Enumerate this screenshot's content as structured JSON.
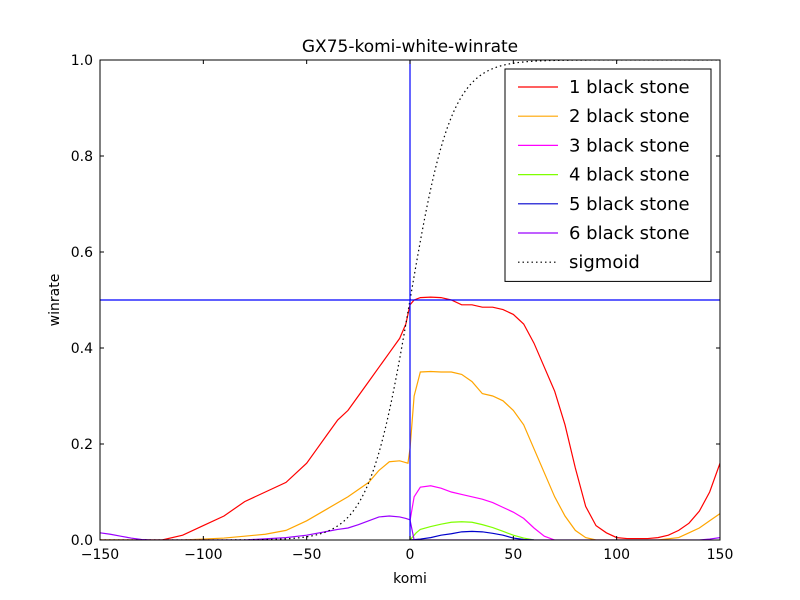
{
  "chart_data": {
    "type": "line",
    "title": "GX75-komi-white-winrate",
    "xlabel": "komi",
    "ylabel": "winrate",
    "xlim": [
      -150,
      150
    ],
    "ylim": [
      0.0,
      1.0
    ],
    "xticks": [
      -150,
      -100,
      -50,
      0,
      50,
      100,
      150
    ],
    "xtick_labels": [
      "−150",
      "−100",
      "−50",
      "0",
      "50",
      "100",
      "150"
    ],
    "yticks": [
      0.0,
      0.2,
      0.4,
      0.6,
      0.8,
      1.0
    ],
    "ytick_labels": [
      "0.0",
      "0.2",
      "0.4",
      "0.6",
      "0.8",
      "1.0"
    ],
    "legend_position": "top-right",
    "reference_lines": {
      "vertical_x": 0,
      "horizontal_y": 0.5,
      "color": "#0000ff"
    },
    "series": [
      {
        "name": "1 black stone",
        "color": "#ff0000",
        "style": "solid",
        "x": [
          -150,
          -140,
          -130,
          -120,
          -110,
          -100,
          -90,
          -80,
          -70,
          -60,
          -50,
          -45,
          -40,
          -35,
          -30,
          -25,
          -20,
          -15,
          -10,
          -5,
          -2,
          0,
          2,
          5,
          10,
          15,
          20,
          25,
          30,
          35,
          40,
          45,
          50,
          55,
          60,
          65,
          70,
          75,
          80,
          85,
          90,
          95,
          100,
          105,
          110,
          115,
          120,
          125,
          130,
          135,
          140,
          145,
          150
        ],
        "y": [
          0.0,
          0.0,
          0.0,
          0.0,
          0.01,
          0.03,
          0.05,
          0.08,
          0.1,
          0.12,
          0.16,
          0.19,
          0.22,
          0.25,
          0.27,
          0.3,
          0.33,
          0.36,
          0.39,
          0.42,
          0.45,
          0.49,
          0.5,
          0.505,
          0.506,
          0.505,
          0.5,
          0.49,
          0.49,
          0.485,
          0.485,
          0.48,
          0.47,
          0.45,
          0.41,
          0.36,
          0.31,
          0.24,
          0.15,
          0.07,
          0.03,
          0.015,
          0.005,
          0.003,
          0.003,
          0.003,
          0.005,
          0.01,
          0.02,
          0.035,
          0.06,
          0.1,
          0.16
        ]
      },
      {
        "name": "2 black stone",
        "color": "#ffa500",
        "style": "solid",
        "x": [
          -150,
          -130,
          -110,
          -100,
          -90,
          -80,
          -70,
          -60,
          -50,
          -40,
          -30,
          -20,
          -15,
          -10,
          -5,
          -1,
          0,
          2,
          5,
          10,
          15,
          20,
          25,
          30,
          35,
          40,
          45,
          50,
          55,
          60,
          65,
          70,
          75,
          80,
          85,
          90,
          100,
          110,
          120,
          130,
          135,
          140,
          145,
          150
        ],
        "y": [
          0.0,
          0.0,
          0.0,
          0.002,
          0.004,
          0.008,
          0.012,
          0.02,
          0.04,
          0.065,
          0.09,
          0.12,
          0.145,
          0.163,
          0.165,
          0.16,
          0.19,
          0.3,
          0.35,
          0.351,
          0.35,
          0.35,
          0.345,
          0.33,
          0.305,
          0.3,
          0.29,
          0.27,
          0.24,
          0.19,
          0.14,
          0.09,
          0.05,
          0.02,
          0.005,
          0.0,
          0.0,
          0.0,
          0.0,
          0.005,
          0.015,
          0.025,
          0.04,
          0.055
        ]
      },
      {
        "name": "3 black stone",
        "color": "#ff00ff",
        "style": "solid",
        "x": [
          0,
          2,
          5,
          10,
          15,
          20,
          25,
          30,
          35,
          40,
          45,
          50,
          55,
          60,
          65,
          70
        ],
        "y": [
          0.04,
          0.09,
          0.11,
          0.113,
          0.108,
          0.1,
          0.095,
          0.09,
          0.085,
          0.078,
          0.068,
          0.058,
          0.045,
          0.025,
          0.008,
          0.0
        ]
      },
      {
        "name": "4 black stone",
        "color": "#7fff00",
        "style": "solid",
        "x": [
          0,
          3,
          5,
          10,
          15,
          20,
          25,
          30,
          35,
          40,
          45,
          50,
          55,
          60
        ],
        "y": [
          0.0,
          0.015,
          0.022,
          0.028,
          0.033,
          0.037,
          0.038,
          0.037,
          0.032,
          0.026,
          0.018,
          0.01,
          0.004,
          0.0
        ]
      },
      {
        "name": "5 black stone",
        "color": "#0000cd",
        "style": "solid",
        "x": [
          0,
          5,
          10,
          15,
          20,
          25,
          30,
          35,
          40,
          45,
          50,
          55,
          60
        ],
        "y": [
          0.0,
          0.002,
          0.005,
          0.01,
          0.013,
          0.017,
          0.018,
          0.017,
          0.014,
          0.01,
          0.004,
          0.001,
          0.0
        ]
      },
      {
        "name": "6 black stone",
        "color": "#9b00ff",
        "style": "solid",
        "x": [
          -150,
          -145,
          -140,
          -135,
          -130,
          -125,
          -120,
          -100,
          -80,
          -60,
          -50,
          -40,
          -35,
          -30,
          -25,
          -20,
          -15,
          -10,
          -5,
          -2,
          0,
          2,
          5,
          10,
          20,
          30,
          40,
          50,
          60,
          70,
          80,
          90,
          100,
          110,
          120,
          130,
          140,
          145,
          150
        ],
        "y": [
          0.015,
          0.012,
          0.008,
          0.004,
          0.001,
          0.0,
          0.0,
          0.0,
          0.0,
          0.005,
          0.01,
          0.018,
          0.022,
          0.025,
          0.032,
          0.04,
          0.048,
          0.05,
          0.048,
          0.045,
          0.042,
          0.0,
          0.0,
          0.0,
          0.0,
          0.0,
          0.0,
          0.0,
          0.0,
          0.0,
          0.0,
          0.0,
          0.0,
          0.0,
          0.0,
          0.0,
          0.0,
          0.002,
          0.005
        ]
      },
      {
        "name": "sigmoid",
        "color": "#000000",
        "style": "dotted",
        "function": "1/(1+exp(-komi/10))"
      }
    ]
  }
}
